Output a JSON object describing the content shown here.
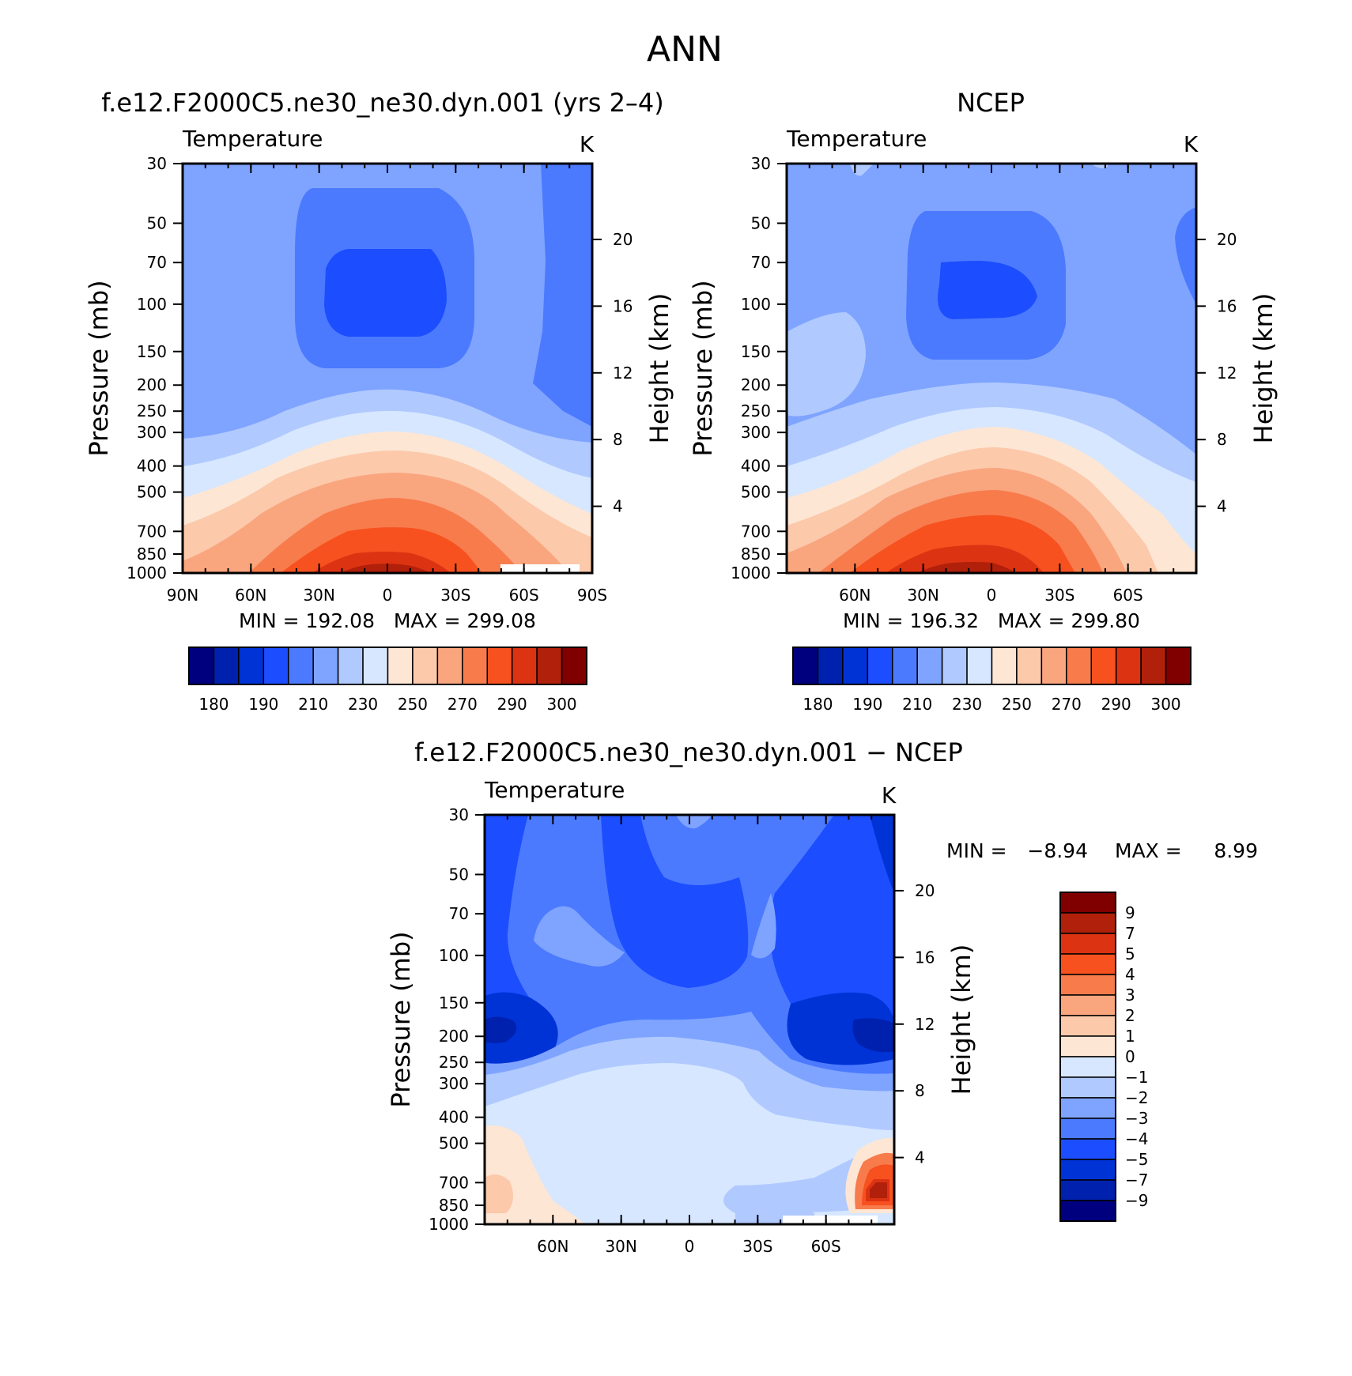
{
  "figure": {
    "title": "ANN"
  },
  "palette": {
    "temperature": [
      "#00007f",
      "#0020ae",
      "#0033d6",
      "#1c4dff",
      "#4b7aff",
      "#7fa4ff",
      "#b0c9ff",
      "#d6e7ff",
      "#fde6d4",
      "#fcc9ab",
      "#f9a57e",
      "#f87b4c",
      "#f6511f",
      "#dc3312",
      "#b0200a",
      "#800000"
    ],
    "difference": [
      "#00007f",
      "#0020ae",
      "#0033d6",
      "#1c4dff",
      "#4b7aff",
      "#7fa4ff",
      "#b0c9ff",
      "#d6e7ff",
      "#fde6d4",
      "#fcc9ab",
      "#f9a57e",
      "#f87b4c",
      "#f6511f",
      "#dc3312",
      "#b0200a",
      "#800000"
    ]
  },
  "chart_data": [
    {
      "type": "heatmap",
      "title": "f.e12.F2000C5.ne30_ne30.dyn.001 (yrs 2–4)",
      "left_label": "Temperature",
      "right_label": "K",
      "ylabel": "Pressure (mb)",
      "y2label": "Height (km)",
      "x_ticklabels": [
        "90N",
        "60N",
        "30N",
        "0",
        "30S",
        "60S",
        "90S"
      ],
      "x_tickvalues": [
        90,
        60,
        30,
        0,
        -30,
        -60,
        -90
      ],
      "xlim": [
        90,
        -90
      ],
      "y_ticklabels": [
        "30",
        "50",
        "70",
        "100",
        "150",
        "200",
        "250",
        "300",
        "400",
        "500",
        "700",
        "850",
        "1000"
      ],
      "ylim": [
        1000,
        30
      ],
      "yscale": "log",
      "y2_ticklabels": [
        "20",
        "16",
        "12",
        "8",
        "4"
      ],
      "stats_text": "MIN = 192.08   MAX = 299.08",
      "min": 192.08,
      "max": 299.08,
      "colorbar": {
        "labels": [
          "180",
          "190",
          "210",
          "230",
          "250",
          "270",
          "290",
          "300"
        ],
        "bins": 16
      },
      "contour_note": "Cold equatorial tropopause (~190 K) near 100 mb, warm near-surface tropics (~299 K)"
    },
    {
      "type": "heatmap",
      "title": "NCEP",
      "left_label": "Temperature",
      "right_label": "K",
      "ylabel": "Pressure (mb)",
      "y2label": "Height (km)",
      "x_ticklabels": [
        "60N",
        "30N",
        "0",
        "30S",
        "60S"
      ],
      "x_tickvalues": [
        60,
        30,
        0,
        -30,
        -60
      ],
      "xlim": [
        90,
        -90
      ],
      "y_ticklabels": [
        "30",
        "50",
        "70",
        "100",
        "150",
        "200",
        "250",
        "300",
        "400",
        "500",
        "700",
        "850",
        "1000"
      ],
      "ylim": [
        1000,
        30
      ],
      "yscale": "log",
      "y2_ticklabels": [
        "20",
        "16",
        "12",
        "8",
        "4"
      ],
      "stats_text": "MIN = 196.32   MAX = 299.80",
      "min": 196.32,
      "max": 299.8,
      "colorbar": {
        "labels": [
          "180",
          "190",
          "210",
          "230",
          "250",
          "270",
          "290",
          "300"
        ],
        "bins": 16
      }
    },
    {
      "type": "heatmap",
      "title": "f.e12.F2000C5.ne30_ne30.dyn.001 − NCEP",
      "left_label": "Temperature",
      "right_label": "K",
      "ylabel": "Pressure (mb)",
      "y2label": "Height (km)",
      "x_ticklabels": [
        "60N",
        "30N",
        "0",
        "30S",
        "60S"
      ],
      "x_tickvalues": [
        60,
        30,
        0,
        -30,
        -60
      ],
      "xlim": [
        90,
        -90
      ],
      "y_ticklabels": [
        "30",
        "50",
        "70",
        "100",
        "150",
        "200",
        "250",
        "300",
        "400",
        "500",
        "700",
        "850",
        "1000"
      ],
      "ylim": [
        1000,
        30
      ],
      "yscale": "log",
      "y2_ticklabels": [
        "20",
        "16",
        "12",
        "8",
        "4"
      ],
      "stats_min_label": "MIN =",
      "stats_min_value": "−8.94",
      "stats_max_label": "MAX =",
      "stats_max_value": "8.99",
      "min": -8.94,
      "max": 8.99,
      "colorbar": {
        "labels": [
          "9",
          "7",
          "5",
          "4",
          "3",
          "2",
          "1",
          "0",
          "−1",
          "−2",
          "−3",
          "−4",
          "−5",
          "−7",
          "−9"
        ],
        "bins": 16
      }
    }
  ]
}
